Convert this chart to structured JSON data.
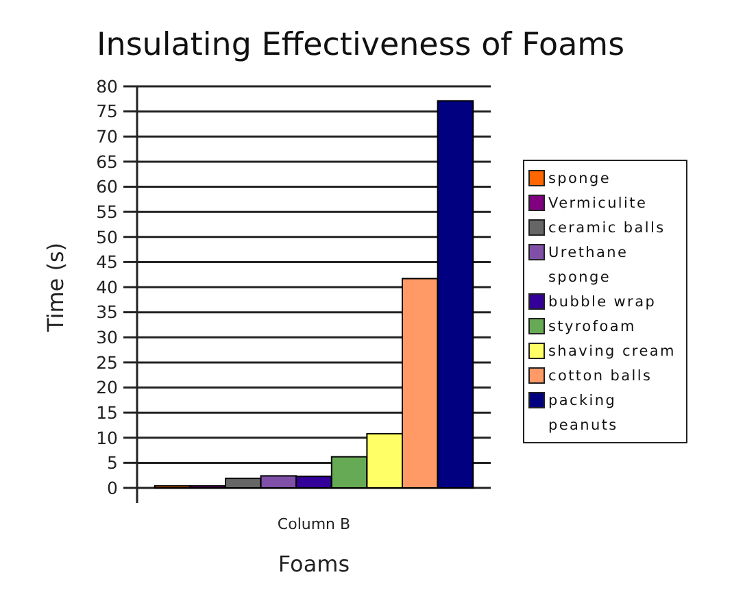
{
  "chart_data": {
    "type": "bar",
    "title": "Insulating Effectiveness of Foams",
    "xlabel": "Foams",
    "ylabel": "Time (s)",
    "categories": [
      "Column B"
    ],
    "series": [
      {
        "name": "sponge",
        "color": "#ff6600",
        "values": [
          0.4
        ]
      },
      {
        "name": "Vermiculite",
        "color": "#800080",
        "values": [
          0.4
        ]
      },
      {
        "name": "ceramic balls",
        "color": "#666666",
        "values": [
          1.9
        ]
      },
      {
        "name": "Urethane sponge",
        "color": "#8050a8",
        "values": [
          2.4
        ]
      },
      {
        "name": "bubble wrap",
        "color": "#330099",
        "values": [
          2.3
        ]
      },
      {
        "name": "styrofoam",
        "color": "#66aa55",
        "values": [
          6.2
        ]
      },
      {
        "name": "shaving cream",
        "color": "#ffff66",
        "values": [
          10.8
        ]
      },
      {
        "name": "cotton balls",
        "color": "#ff9966",
        "values": [
          41.7
        ]
      },
      {
        "name": "packing peanuts",
        "color": "#000080",
        "values": [
          77.1
        ]
      }
    ],
    "ylim": [
      0,
      80
    ],
    "yticks": [
      0,
      5,
      10,
      15,
      20,
      25,
      30,
      35,
      40,
      45,
      50,
      55,
      60,
      65,
      70,
      75,
      80
    ],
    "grid": "y",
    "legend": "right"
  }
}
